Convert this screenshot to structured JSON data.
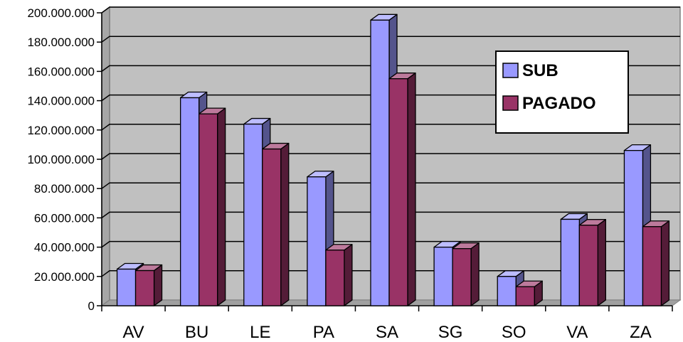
{
  "chart_data": {
    "type": "bar",
    "style": "3d-clustered-column",
    "categories": [
      "AV",
      "BU",
      "LE",
      "PA",
      "SA",
      "SG",
      "SO",
      "VA",
      "ZA"
    ],
    "series": [
      {
        "name": "SUB",
        "color": "#9999ff",
        "values": [
          25000000,
          142000000,
          124000000,
          88000000,
          195000000,
          40000000,
          20000000,
          59000000,
          106000000
        ]
      },
      {
        "name": "PAGADO",
        "color": "#993366",
        "values": [
          24000000,
          131000000,
          107000000,
          38000000,
          155000000,
          39000000,
          13000000,
          55000000,
          54000000
        ]
      }
    ],
    "ylim": [
      0,
      200000000
    ],
    "y_ticks": [
      "0",
      "20.000.000",
      "40.000.000",
      "60.000.000",
      "80.000.000",
      "100.000.000",
      "120.000.000",
      "140.000.000",
      "160.000.000",
      "180.000.000",
      "200.000.000"
    ],
    "grid": true,
    "plot_background": "#c0c0c0",
    "legend_position": "top-right"
  }
}
